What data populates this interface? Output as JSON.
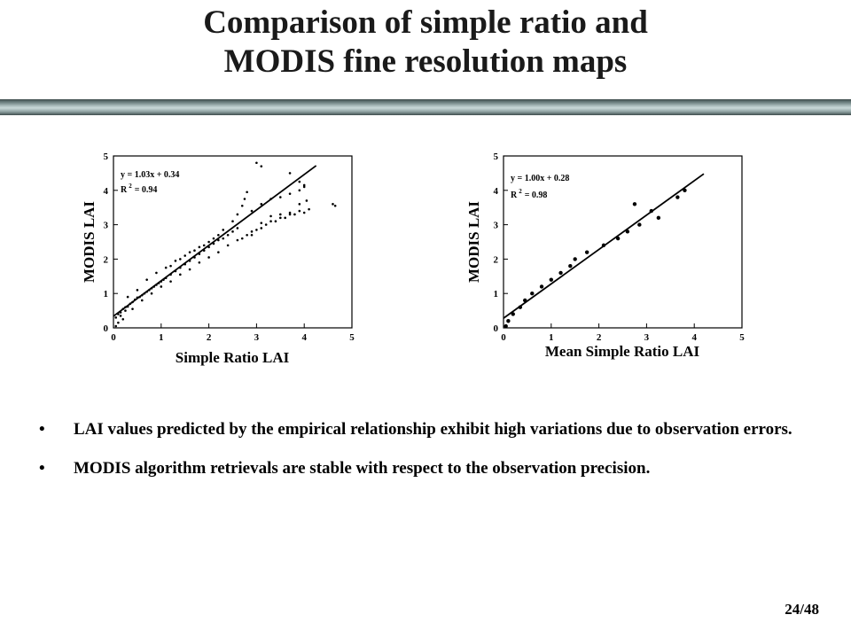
{
  "slide": {
    "title_line1": "Comparison of simple ratio and",
    "title_line2": "MODIS fine resolution maps",
    "bullets": [
      "LAI values predicted by the empirical relationship exhibit high variations due to observation errors.",
      "MODIS algorithm retrievals are stable with respect to the observation precision."
    ],
    "bullet_symbol": "•",
    "page_number": "24/48",
    "band_color": "#8ea1a1"
  },
  "chart_data": [
    {
      "type": "scatter",
      "title": "",
      "xlabel": "Simple Ratio LAI",
      "ylabel": "MODIS LAI",
      "xlim": [
        0,
        5
      ],
      "ylim": [
        0,
        5
      ],
      "xticks": [
        "0",
        "1",
        "2",
        "3",
        "4",
        "5"
      ],
      "yticks": [
        "0",
        "1",
        "2",
        "3",
        "4",
        "5"
      ],
      "equation": "y = 1.03x + 0.34",
      "r2_label": "R",
      "r2_sup": "2",
      "r2_value": "= 0.94",
      "fit": {
        "slope": 1.03,
        "intercept": 0.34,
        "x_range": [
          0,
          4.25
        ]
      },
      "points": [
        [
          0.05,
          0.3
        ],
        [
          0.1,
          0.4
        ],
        [
          0.15,
          0.45
        ],
        [
          0.2,
          0.55
        ],
        [
          0.25,
          0.6
        ],
        [
          0.3,
          0.62
        ],
        [
          0.35,
          0.7
        ],
        [
          0.4,
          0.75
        ],
        [
          0.45,
          0.82
        ],
        [
          0.5,
          0.88
        ],
        [
          0.55,
          0.9
        ],
        [
          0.6,
          0.95
        ],
        [
          0.65,
          1.0
        ],
        [
          0.7,
          1.05
        ],
        [
          0.75,
          1.1
        ],
        [
          0.8,
          1.15
        ],
        [
          0.85,
          1.2
        ],
        [
          0.9,
          1.25
        ],
        [
          0.95,
          1.3
        ],
        [
          1.0,
          1.35
        ],
        [
          1.05,
          1.4
        ],
        [
          1.1,
          1.45
        ],
        [
          1.2,
          1.55
        ],
        [
          1.3,
          1.65
        ],
        [
          1.4,
          1.75
        ],
        [
          1.5,
          1.85
        ],
        [
          1.6,
          1.95
        ],
        [
          1.7,
          2.05
        ],
        [
          1.8,
          2.15
        ],
        [
          1.9,
          2.25
        ],
        [
          2.0,
          2.35
        ],
        [
          2.1,
          2.45
        ],
        [
          2.2,
          2.55
        ],
        [
          2.3,
          2.6
        ],
        [
          2.4,
          2.7
        ],
        [
          2.5,
          2.8
        ],
        [
          2.6,
          2.9
        ],
        [
          0.3,
          0.9
        ],
        [
          0.5,
          1.1
        ],
        [
          0.7,
          1.4
        ],
        [
          0.9,
          1.6
        ],
        [
          1.1,
          1.75
        ],
        [
          1.3,
          1.95
        ],
        [
          1.5,
          2.1
        ],
        [
          1.7,
          2.25
        ],
        [
          1.9,
          2.4
        ],
        [
          2.1,
          2.6
        ],
        [
          2.3,
          2.85
        ],
        [
          2.5,
          3.1
        ],
        [
          2.6,
          3.3
        ],
        [
          2.7,
          3.55
        ],
        [
          2.75,
          3.75
        ],
        [
          2.8,
          3.95
        ],
        [
          0.4,
          0.55
        ],
        [
          0.6,
          0.8
        ],
        [
          0.8,
          1.0
        ],
        [
          1.0,
          1.2
        ],
        [
          1.2,
          1.35
        ],
        [
          1.4,
          1.55
        ],
        [
          1.6,
          1.7
        ],
        [
          1.8,
          1.9
        ],
        [
          2.0,
          2.05
        ],
        [
          2.2,
          2.2
        ],
        [
          2.4,
          2.4
        ],
        [
          2.6,
          2.55
        ],
        [
          2.8,
          2.7
        ],
        [
          3.0,
          2.85
        ],
        [
          3.2,
          3.0
        ],
        [
          3.4,
          3.1
        ],
        [
          3.6,
          3.2
        ],
        [
          3.8,
          3.3
        ],
        [
          4.0,
          3.35
        ],
        [
          2.9,
          2.8
        ],
        [
          3.1,
          3.05
        ],
        [
          3.3,
          3.25
        ],
        [
          3.5,
          3.3
        ],
        [
          3.7,
          3.35
        ],
        [
          3.9,
          3.4
        ],
        [
          4.1,
          3.45
        ],
        [
          2.9,
          3.4
        ],
        [
          3.1,
          3.6
        ],
        [
          3.3,
          3.75
        ],
        [
          3.5,
          3.8
        ],
        [
          3.7,
          3.9
        ],
        [
          3.9,
          4.0
        ],
        [
          4.0,
          4.1
        ],
        [
          2.7,
          2.6
        ],
        [
          2.9,
          2.7
        ],
        [
          3.1,
          2.9
        ],
        [
          3.3,
          3.1
        ],
        [
          3.5,
          3.2
        ],
        [
          3.7,
          3.3
        ],
        [
          3.9,
          3.6
        ],
        [
          4.05,
          3.7
        ],
        [
          3.7,
          4.5
        ],
        [
          3.9,
          4.25
        ],
        [
          4.0,
          4.15
        ],
        [
          4.6,
          3.6
        ],
        [
          4.65,
          3.55
        ],
        [
          3.0,
          4.8
        ],
        [
          3.1,
          4.7
        ],
        [
          1.2,
          1.8
        ],
        [
          1.4,
          2.0
        ],
        [
          1.6,
          2.2
        ],
        [
          1.8,
          2.35
        ],
        [
          2.0,
          2.5
        ],
        [
          2.2,
          2.7
        ],
        [
          0.2,
          0.25
        ],
        [
          0.1,
          0.15
        ],
        [
          0.05,
          0.05
        ],
        [
          0.15,
          0.35
        ],
        [
          0.25,
          0.5
        ]
      ]
    },
    {
      "type": "scatter",
      "title": "",
      "xlabel": "Mean Simple Ratio LAI",
      "ylabel": "MODIS LAI",
      "xlim": [
        0,
        5
      ],
      "ylim": [
        0,
        5
      ],
      "xticks": [
        "0",
        "1",
        "2",
        "3",
        "4",
        "5"
      ],
      "yticks": [
        "0",
        "1",
        "2",
        "3",
        "4",
        "5"
      ],
      "equation": "y = 1.00x + 0.28",
      "r2_label": "R",
      "r2_sup": "2",
      "r2_value": "= 0.98",
      "fit": {
        "slope": 1.0,
        "intercept": 0.28,
        "x_range": [
          0,
          4.2
        ]
      },
      "points": [
        [
          0.05,
          0.05
        ],
        [
          0.1,
          0.2
        ],
        [
          0.2,
          0.4
        ],
        [
          0.35,
          0.6
        ],
        [
          0.45,
          0.8
        ],
        [
          0.6,
          1.0
        ],
        [
          0.8,
          1.2
        ],
        [
          1.0,
          1.4
        ],
        [
          1.2,
          1.6
        ],
        [
          1.4,
          1.8
        ],
        [
          1.5,
          2.0
        ],
        [
          1.75,
          2.2
        ],
        [
          2.1,
          2.4
        ],
        [
          2.4,
          2.6
        ],
        [
          2.6,
          2.8
        ],
        [
          2.75,
          3.6
        ],
        [
          2.85,
          3.0
        ],
        [
          3.1,
          3.4
        ],
        [
          3.25,
          3.2
        ],
        [
          3.65,
          3.8
        ],
        [
          3.8,
          4.0
        ]
      ]
    }
  ]
}
